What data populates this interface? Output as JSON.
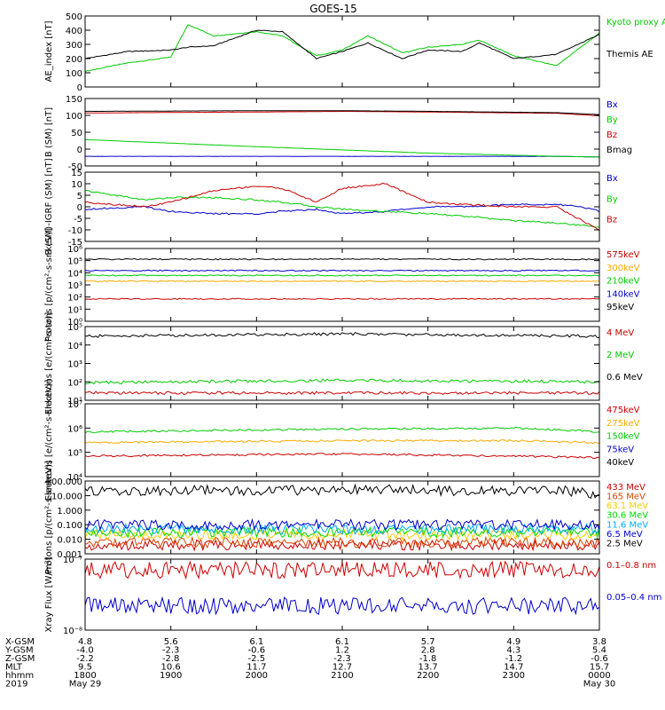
{
  "title": "GOES-15",
  "chart_data": [
    {
      "type": "line",
      "ylabel": "AE_index [nT]",
      "yscale": "linear",
      "ylim": [
        0,
        500
      ],
      "yticks": [
        "0",
        "100",
        "200",
        "300",
        "400",
        "500"
      ],
      "x": [
        18.0,
        18.5,
        19.0,
        19.2,
        19.5,
        20.0,
        20.3,
        20.7,
        21.0,
        21.3,
        21.7,
        22.0,
        22.4,
        22.6,
        23.0,
        23.5,
        24.0
      ],
      "series": [
        {
          "name": "Kyoto proxy AE",
          "color": "#00cc00",
          "values": [
            110,
            170,
            210,
            440,
            360,
            390,
            360,
            220,
            260,
            360,
            240,
            280,
            300,
            330,
            220,
            150,
            380
          ]
        },
        {
          "name": "Themis AE",
          "color": "#000000",
          "values": [
            200,
            250,
            260,
            280,
            290,
            400,
            390,
            200,
            250,
            310,
            200,
            260,
            250,
            310,
            200,
            230,
            370
          ]
        }
      ]
    },
    {
      "type": "line",
      "ylabel": "B (SM) [nT]",
      "yscale": "linear",
      "ylim": [
        -60,
        150
      ],
      "yticks": [
        "-50",
        "0",
        "50",
        "100",
        "150"
      ],
      "x": [
        18.0,
        20.0,
        21.0,
        22.0,
        23.5,
        24.0
      ],
      "series": [
        {
          "name": "Bx",
          "color": "#0000cc",
          "values": [
            -30,
            -30,
            -30,
            -30,
            -30,
            -32
          ]
        },
        {
          "name": "By",
          "color": "#00cc00",
          "values": [
            22,
            0,
            -10,
            -20,
            -30,
            -32
          ]
        },
        {
          "name": "Bz",
          "color": "#cc0000",
          "values": [
            105,
            108,
            110,
            108,
            104,
            96
          ]
        },
        {
          "name": "Bmag",
          "color": "#000000",
          "values": [
            110,
            112,
            112,
            110,
            106,
            100
          ]
        }
      ]
    },
    {
      "type": "line",
      "ylabel": "B (SM)-IGRF (SM) [nT]",
      "yscale": "linear",
      "ylim": [
        -15,
        15
      ],
      "yticks": [
        "-15",
        "-10",
        "-5",
        "0",
        "5",
        "10",
        "15"
      ],
      "x": [
        18.0,
        18.7,
        19.0,
        19.5,
        20.0,
        20.3,
        20.7,
        21.0,
        21.5,
        22.0,
        22.4,
        23.0,
        23.5,
        23.8,
        24.0
      ],
      "series": [
        {
          "name": "Bx",
          "color": "#0000cc",
          "values": [
            -1,
            0,
            -2,
            -3,
            -3,
            -2,
            -1,
            -3,
            -2,
            0,
            0,
            1,
            1,
            0,
            -2
          ]
        },
        {
          "name": "By",
          "color": "#00cc00",
          "values": [
            7,
            3,
            4,
            4,
            3,
            2,
            0,
            -1,
            -2,
            -3,
            -4,
            -6,
            -7,
            -8,
            -9
          ]
        },
        {
          "name": "Bz",
          "color": "#cc0000",
          "values": [
            2,
            0,
            2,
            7,
            9,
            8,
            2,
            8,
            10,
            2,
            1,
            0,
            0,
            -6,
            -10
          ]
        }
      ]
    },
    {
      "type": "line",
      "ylabel": "Protons [p/(cm²-s-sr-keV)]",
      "yscale": "log",
      "ylim": [
        1,
        1000000
      ],
      "yticks": [
        "10⁰",
        "10¹",
        "10²",
        "10³",
        "10⁴",
        "10⁵",
        "10⁶"
      ],
      "x": [
        18.0,
        24.0
      ],
      "series": [
        {
          "name": "575keV",
          "color": "#cc0000",
          "values": [
            70,
            70
          ]
        },
        {
          "name": "300keV",
          "color": "#ffaa00",
          "values": [
            2000,
            2000
          ]
        },
        {
          "name": "210keV",
          "color": "#00cc00",
          "values": [
            6000,
            6000
          ]
        },
        {
          "name": "140keV",
          "color": "#0000cc",
          "values": [
            15000,
            15000
          ]
        },
        {
          "name": "95keV",
          "color": "#000000",
          "values": [
            130000,
            130000
          ]
        }
      ]
    },
    {
      "type": "line",
      "ylabel": "Electrons [e/(cm²-s-sr)]",
      "yscale": "log",
      "ylim": [
        10,
        100000
      ],
      "yticks": [
        "10¹",
        "10²",
        "10³",
        "10⁴",
        "10⁵"
      ],
      "x": [
        18.0,
        21.0,
        24.0
      ],
      "series": [
        {
          "name": "4 MeV",
          "color": "#cc0000",
          "values": [
            25,
            25,
            25
          ]
        },
        {
          "name": "2 MeV",
          "color": "#00cc00",
          "values": [
            90,
            120,
            100
          ]
        },
        {
          "name": "0.6 MeV",
          "color": "#000000",
          "values": [
            30000,
            40000,
            30000
          ]
        }
      ]
    },
    {
      "type": "line",
      "ylabel": "Electrons [e/(cm²-s-sr-keV)]",
      "yscale": "log",
      "ylim": [
        10000,
        10000000
      ],
      "yticks": [
        "10⁴",
        "10⁵",
        "10⁶",
        "10⁷"
      ],
      "x": [
        18.0,
        21.0,
        23.0,
        24.0
      ],
      "series": [
        {
          "name": "475keV",
          "color": "#cc0000",
          "values": [
            70000,
            85000,
            70000,
            60000
          ]
        },
        {
          "name": "275keV",
          "color": "#ffaa00",
          "values": [
            250000,
            300000,
            300000,
            250000
          ]
        },
        {
          "name": "150keV",
          "color": "#00cc00",
          "values": [
            700000,
            900000,
            1000000,
            700000
          ]
        },
        {
          "name": "75keV",
          "color": "#0000cc",
          "values": [
            null,
            null,
            null,
            null
          ]
        },
        {
          "name": "40keV",
          "color": "#000000",
          "values": [
            null,
            null,
            null,
            null
          ]
        }
      ]
    },
    {
      "type": "line",
      "ylabel": "Protons [p/(cm²-s-sr-keV)]",
      "yscale": "log",
      "ylim": [
        0.001,
        100
      ],
      "yticks": [
        "0.001",
        "0.010",
        "0.100",
        "1.000",
        "10.000",
        "100.000"
      ],
      "x": [
        18.0,
        21.0,
        23.7,
        24.0
      ],
      "series": [
        {
          "name": "433 MeV",
          "color": "#cc0000",
          "values": [
            0.004,
            0.004,
            0.004,
            0.004
          ]
        },
        {
          "name": "165 MeV",
          "color": "#dd4400",
          "values": [
            0.006,
            0.006,
            0.006,
            0.006
          ]
        },
        {
          "name": "63.1 MeV",
          "color": "#ffcc00",
          "values": [
            0.02,
            0.02,
            0.02,
            0.02
          ]
        },
        {
          "name": "30.6 MeV",
          "color": "#00dd00",
          "values": [
            0.03,
            0.03,
            0.03,
            0.03
          ]
        },
        {
          "name": "11.6 MeV",
          "color": "#00aaff",
          "values": [
            0.05,
            0.05,
            0.05,
            0.05
          ]
        },
        {
          "name": "6.5 MeV",
          "color": "#0000cc",
          "values": [
            0.1,
            0.1,
            0.1,
            0.1
          ]
        },
        {
          "name": "2.5 MeV",
          "color": "#000000",
          "values": [
            20,
            25,
            20,
            9
          ]
        }
      ]
    },
    {
      "type": "line",
      "ylabel": "Xray Flux [W/m²]",
      "yscale": "log",
      "ylim": [
        1e-08,
        1e-07
      ],
      "yticks": [
        "10⁻⁸",
        "10⁻⁷"
      ],
      "x": [
        18.0,
        24.0
      ],
      "series": [
        {
          "name": "0.1–0.8 nm",
          "color": "#cc0000",
          "values": [
            7e-08,
            7e-08
          ]
        },
        {
          "name": "0.05–0.4 nm",
          "color": "#0000cc",
          "values": [
            2.2e-08,
            2.2e-08
          ]
        }
      ]
    }
  ],
  "xaxis": {
    "rows": [
      {
        "label": "X-GSM",
        "values": [
          "4.8",
          "5.6",
          "6.1",
          "6.1",
          "5.7",
          "4.9",
          "3.8"
        ]
      },
      {
        "label": "Y-GSM",
        "values": [
          "-4.0",
          "-2.3",
          "-0.6",
          "1.2",
          "2.8",
          "4.3",
          "5.4"
        ]
      },
      {
        "label": "Z-GSM",
        "values": [
          "-2.2",
          "-2.8",
          "-2.5",
          "-2.3",
          "-1.8",
          "-1.2",
          "-0.6"
        ]
      },
      {
        "label": "MLT",
        "values": [
          "9.5",
          "10.6",
          "11.7",
          "12.7",
          "13.7",
          "14.7",
          "15.7"
        ]
      },
      {
        "label": "hhmm",
        "values": [
          "1800",
          "1900",
          "2000",
          "2100",
          "2200",
          "2300",
          "0000"
        ]
      }
    ],
    "date_row": {
      "label": "2019",
      "start": "May 29",
      "end": "May 30"
    }
  }
}
